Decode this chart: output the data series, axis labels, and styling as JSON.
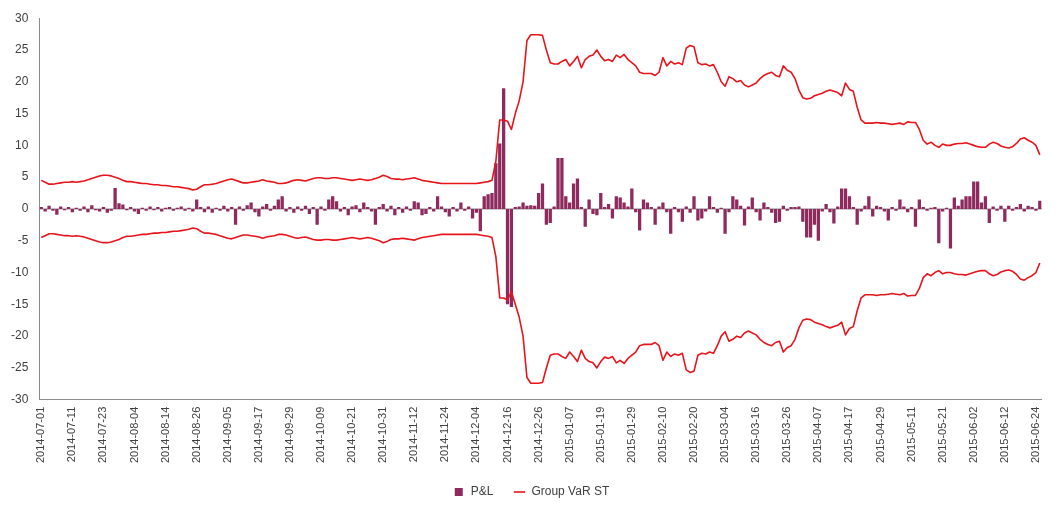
{
  "chart_data": {
    "type": "bar",
    "categories": [
      "2014-07-01",
      null,
      null,
      null,
      null,
      null,
      null,
      null,
      "2014-07-11",
      null,
      null,
      null,
      null,
      null,
      null,
      null,
      "2014-07-23",
      null,
      null,
      null,
      null,
      null,
      null,
      null,
      "2014-08-04",
      null,
      null,
      null,
      null,
      null,
      null,
      null,
      "2014-08-14",
      null,
      null,
      null,
      null,
      null,
      null,
      null,
      "2014-08-26",
      null,
      null,
      null,
      null,
      null,
      null,
      null,
      "2014-09-05",
      null,
      null,
      null,
      null,
      null,
      null,
      null,
      "2014-09-17",
      null,
      null,
      null,
      null,
      null,
      null,
      null,
      "2014-09-29",
      null,
      null,
      null,
      null,
      null,
      null,
      null,
      "2014-10-09",
      null,
      null,
      null,
      null,
      null,
      null,
      null,
      "2014-10-21",
      null,
      null,
      null,
      null,
      null,
      null,
      null,
      "2014-10-31",
      null,
      null,
      null,
      null,
      null,
      null,
      null,
      "2014-11-12",
      null,
      null,
      null,
      null,
      null,
      null,
      null,
      "2014-11-24",
      null,
      null,
      null,
      null,
      null,
      null,
      null,
      "2014-12-04",
      null,
      null,
      null,
      null,
      null,
      null,
      null,
      "2014-12-16",
      null,
      null,
      null,
      null,
      null,
      null,
      null,
      "2014-12-26",
      null,
      null,
      null,
      null,
      null,
      null,
      null,
      "2015-01-07",
      null,
      null,
      null,
      null,
      null,
      null,
      null,
      "2015-01-19",
      null,
      null,
      null,
      null,
      null,
      null,
      null,
      "2015-01-29",
      null,
      null,
      null,
      null,
      null,
      null,
      null,
      "2015-02-10",
      null,
      null,
      null,
      null,
      null,
      null,
      null,
      "2015-02-20",
      null,
      null,
      null,
      null,
      null,
      null,
      null,
      "2015-03-04",
      null,
      null,
      null,
      null,
      null,
      null,
      null,
      "2015-03-16",
      null,
      null,
      null,
      null,
      null,
      null,
      null,
      "2015-03-26",
      null,
      null,
      null,
      null,
      null,
      null,
      null,
      "2015-04-07",
      null,
      null,
      null,
      null,
      null,
      null,
      null,
      "2015-04-17",
      null,
      null,
      null,
      null,
      null,
      null,
      null,
      "2015-04-29",
      null,
      null,
      null,
      null,
      null,
      null,
      null,
      "2015-05-11",
      null,
      null,
      null,
      null,
      null,
      null,
      null,
      "2015-05-21",
      null,
      null,
      null,
      null,
      null,
      null,
      null,
      "2015-06-02",
      null,
      null,
      null,
      null,
      null,
      null,
      null,
      "2015-06-12",
      null,
      null,
      null,
      null,
      null,
      null,
      null,
      "2015-06-24",
      null
    ],
    "series": [
      {
        "name": "P&L",
        "color": "#8e2a5e",
        "values": [
          0.3,
          -0.4,
          0.5,
          -0.3,
          -0.9,
          0.4,
          -0.2,
          0.3,
          -0.5,
          0.2,
          -0.3,
          0.4,
          -0.5,
          0.6,
          -0.2,
          -0.4,
          0.3,
          -0.6,
          -0.3,
          3.3,
          0.9,
          0.7,
          -0.2,
          0.3,
          -0.4,
          -0.8,
          0.2,
          -0.3,
          0.4,
          -0.2,
          0.3,
          -0.4,
          0.2,
          0.3,
          -0.3,
          0.2,
          0.4,
          -0.3,
          0.2,
          -0.4,
          1.5,
          0.3,
          -0.5,
          0.4,
          -0.6,
          0.2,
          -0.3,
          0.5,
          -0.4,
          0.3,
          -2.5,
          0.4,
          -0.3,
          0.6,
          1.0,
          -0.5,
          -1.2,
          0.4,
          0.8,
          -0.3,
          0.5,
          1.5,
          2.0,
          -0.4,
          0.3,
          -0.6,
          0.4,
          -0.3,
          0.5,
          -0.8,
          0.3,
          -2.5,
          0.4,
          -0.3,
          1.5,
          2.0,
          1.2,
          -0.4,
          0.3,
          -1.0,
          0.4,
          0.6,
          -0.5,
          1.0,
          0.3,
          -0.4,
          -2.5,
          0.3,
          0.8,
          -0.4,
          0.5,
          -1.0,
          0.3,
          -0.6,
          0.4,
          -0.3,
          1.2,
          1.0,
          -1.0,
          -0.8,
          0.3,
          -0.4,
          2.0,
          0.4,
          -0.5,
          -1.2,
          0.3,
          -0.4,
          1.0,
          -0.3,
          0.4,
          -1.5,
          -0.6,
          -3.5,
          2.0,
          2.3,
          2.5,
          7.2,
          10.3,
          19,
          -15,
          -15.4,
          0.3,
          0.4,
          1.0,
          0.5,
          0.6,
          0.5,
          2.5,
          4.0,
          -2.5,
          -2.2,
          0.4,
          8.0,
          8.0,
          2.0,
          1.0,
          4.0,
          4.8,
          0.3,
          -2.8,
          1.5,
          -0.8,
          -1.0,
          2.5,
          0.3,
          0.8,
          -1.5,
          2.0,
          1.8,
          1.0,
          0.4,
          3.2,
          -0.5,
          -3.4,
          1.5,
          1.0,
          0.3,
          -2.5,
          0.4,
          1.0,
          -0.5,
          -3.9,
          0.3,
          -0.5,
          -2.0,
          0.4,
          -0.6,
          2.0,
          -1.8,
          -1.5,
          -0.4,
          2.0,
          0.3,
          -0.6,
          0.2,
          -3.9,
          -0.5,
          2.0,
          1.5,
          0.5,
          -2.6,
          0.4,
          1.8,
          -0.5,
          -1.8,
          1.0,
          0.3,
          -0.6,
          -2.2,
          -2.0,
          0.5,
          -0.3,
          0.3,
          0.3,
          0.4,
          -2.0,
          -4.5,
          -4.5,
          -2.5,
          -5.0,
          -0.4,
          0.8,
          -0.5,
          -2.3,
          0.4,
          3.2,
          3.2,
          2.0,
          0.3,
          -2.5,
          -0.4,
          0.5,
          2.0,
          -1.2,
          0.5,
          0.3,
          -0.4,
          -1.8,
          0.3,
          -0.3,
          1.5,
          0.4,
          -0.5,
          0.3,
          -2.8,
          1.5,
          0.3,
          -0.3,
          0.2,
          0.3,
          -5.4,
          -0.4,
          0.2,
          -6.2,
          1.8,
          0.5,
          1.5,
          2.0,
          2.0,
          4.3,
          4.3,
          1.0,
          2.0,
          -2.2,
          0.4,
          -0.3,
          0.5,
          -2.0,
          0.5,
          -0.3,
          0.3,
          0.8,
          -0.4,
          0.5,
          0.3,
          -0.3,
          1.3
        ]
      },
      {
        "name": "Group VaR ST",
        "type": "line",
        "color": "#e8141c",
        "values": [
          4.5,
          4.2,
          3.9,
          3.9,
          4.0,
          4.1,
          4.2,
          4.2,
          4.3,
          4.2,
          4.3,
          4.4,
          4.6,
          4.8,
          5.0,
          5.2,
          5.3,
          5.3,
          5.2,
          5.0,
          4.8,
          4.5,
          4.3,
          4.3,
          4.2,
          4.1,
          4.0,
          4.0,
          3.9,
          3.8,
          3.8,
          3.7,
          3.7,
          3.6,
          3.5,
          3.5,
          3.4,
          3.3,
          3.2,
          3.0,
          3.1,
          3.5,
          3.8,
          3.8,
          3.9,
          4.0,
          4.2,
          4.4,
          4.6,
          4.7,
          4.5,
          4.3,
          4.1,
          4.1,
          4.2,
          4.3,
          4.4,
          4.6,
          4.4,
          4.3,
          4.2,
          4.0,
          4.0,
          4.1,
          4.3,
          4.5,
          4.6,
          4.5,
          4.4,
          4.6,
          4.8,
          4.9,
          4.9,
          4.8,
          4.8,
          4.9,
          4.9,
          4.8,
          4.7,
          4.6,
          4.5,
          4.6,
          4.7,
          4.6,
          4.5,
          4.6,
          4.8,
          5.0,
          5.3,
          5.1,
          4.8,
          4.7,
          4.7,
          4.6,
          4.7,
          4.8,
          4.9,
          4.7,
          4.5,
          4.4,
          4.3,
          4.2,
          4.1,
          4.0,
          4.0,
          4.0,
          4.0,
          4.0,
          4.0,
          4.0,
          4.0,
          4.0,
          4.0,
          4.1,
          4.2,
          4.3,
          4.5,
          7.5,
          14,
          14,
          13.8,
          12.5,
          15,
          17,
          20,
          26.5,
          27.4,
          27.4,
          27.4,
          27.3,
          25,
          23,
          22.8,
          22.8,
          23.2,
          23.5,
          22.5,
          23.2,
          24,
          22.2,
          23.5,
          24,
          24.2,
          25,
          24,
          23.3,
          23.5,
          23.2,
          24.2,
          23.8,
          24.3,
          23.5,
          23,
          22.5,
          21.5,
          21.3,
          21.3,
          21.3,
          21,
          21.5,
          23.8,
          22.5,
          23.2,
          22.8,
          23,
          22.7,
          25.3,
          25.7,
          25.5,
          23,
          22.7,
          22.8,
          22.5,
          22.7,
          21.5,
          20,
          19.3,
          20.8,
          20.5,
          20,
          20.2,
          19.5,
          19.2,
          19.5,
          19.8,
          20.5,
          21,
          21.3,
          21.5,
          21,
          20.8,
          22.5,
          21.8,
          21.5,
          20.5,
          18.7,
          17.5,
          17.3,
          17.4,
          17.8,
          18,
          18.2,
          18.5,
          18.7,
          18.5,
          18.3,
          17.8,
          19.8,
          18.8,
          18.5,
          16,
          14,
          13.5,
          13.5,
          13.5,
          13.6,
          13.5,
          13.5,
          13.4,
          13.3,
          13.4,
          13.5,
          13.3,
          13.7,
          13.6,
          13.6,
          12.5,
          10.8,
          10.2,
          10.5,
          10,
          9.7,
          10.2,
          10,
          10,
          10.2,
          10.3,
          10.3,
          10.4,
          10.2,
          10,
          9.8,
          9.7,
          9.7,
          10.2,
          10.5,
          10.3,
          9.9,
          9.7,
          9.6,
          9.8,
          10.3,
          11,
          11.2,
          10.8,
          10.5,
          10,
          8.5
        ]
      },
      {
        "type": "line",
        "color": "#e8141c",
        "values": [
          -4.5,
          -4.2,
          -3.9,
          -3.9,
          -4.0,
          -4.1,
          -4.2,
          -4.2,
          -4.3,
          -4.2,
          -4.3,
          -4.4,
          -4.6,
          -4.8,
          -5.0,
          -5.2,
          -5.3,
          -5.3,
          -5.2,
          -5.0,
          -4.8,
          -4.5,
          -4.3,
          -4.3,
          -4.2,
          -4.1,
          -4.0,
          -4.0,
          -3.9,
          -3.8,
          -3.8,
          -3.7,
          -3.7,
          -3.6,
          -3.5,
          -3.5,
          -3.4,
          -3.3,
          -3.2,
          -3.0,
          -3.1,
          -3.5,
          -3.8,
          -3.8,
          -3.9,
          -4.0,
          -4.2,
          -4.4,
          -4.6,
          -4.7,
          -4.5,
          -4.3,
          -4.1,
          -4.1,
          -4.2,
          -4.3,
          -4.4,
          -4.6,
          -4.4,
          -4.3,
          -4.2,
          -4.0,
          -4.0,
          -4.1,
          -4.3,
          -4.5,
          -4.6,
          -4.5,
          -4.4,
          -4.6,
          -4.8,
          -4.9,
          -4.9,
          -4.8,
          -4.8,
          -4.9,
          -4.9,
          -4.8,
          -4.7,
          -4.6,
          -4.5,
          -4.6,
          -4.7,
          -4.6,
          -4.5,
          -4.6,
          -4.8,
          -5.0,
          -5.3,
          -5.1,
          -4.8,
          -4.7,
          -4.7,
          -4.6,
          -4.7,
          -4.8,
          -4.9,
          -4.7,
          -4.5,
          -4.4,
          -4.3,
          -4.2,
          -4.1,
          -4.0,
          -4.0,
          -4.0,
          -4.0,
          -4.0,
          -4.0,
          -4.0,
          -4.0,
          -4.0,
          -4.0,
          -4.1,
          -4.2,
          -4.3,
          -4.5,
          -7.5,
          -14,
          -14,
          -14.3,
          -13,
          -15,
          -17,
          -20,
          -26.5,
          -27.4,
          -27.4,
          -27.4,
          -27.3,
          -25,
          -23,
          -22.8,
          -22.8,
          -23.2,
          -23.5,
          -22.5,
          -23.2,
          -24,
          -22.2,
          -23.5,
          -24,
          -24.2,
          -25,
          -24,
          -23.3,
          -23.5,
          -23.2,
          -24.2,
          -23.8,
          -24.3,
          -23.5,
          -23,
          -22.5,
          -21.5,
          -21.3,
          -21.3,
          -21.3,
          -21,
          -21.5,
          -23.8,
          -22.5,
          -23.2,
          -22.8,
          -23,
          -22.7,
          -25.3,
          -25.7,
          -25.5,
          -23,
          -22.7,
          -22.8,
          -22.5,
          -22.7,
          -21.5,
          -20,
          -19.3,
          -20.8,
          -20.5,
          -20,
          -20.2,
          -19.5,
          -19.2,
          -19.5,
          -19.8,
          -20.5,
          -21,
          -21.3,
          -21.5,
          -21,
          -20.8,
          -22.5,
          -21.8,
          -21.5,
          -20.5,
          -18.7,
          -17.5,
          -17.3,
          -17.4,
          -17.8,
          -18,
          -18.2,
          -18.5,
          -18.7,
          -18.5,
          -18.3,
          -17.8,
          -19.8,
          -18.8,
          -18.5,
          -16,
          -14,
          -13.5,
          -13.5,
          -13.5,
          -13.6,
          -13.5,
          -13.5,
          -13.4,
          -13.3,
          -13.4,
          -13.5,
          -13.3,
          -13.7,
          -13.6,
          -13.6,
          -12.5,
          -10.8,
          -10.2,
          -10.5,
          -10,
          -9.7,
          -10.2,
          -10,
          -10,
          -10.2,
          -10.3,
          -10.3,
          -10.4,
          -10.2,
          -10,
          -9.8,
          -9.7,
          -9.7,
          -10.2,
          -10.5,
          -10.3,
          -9.9,
          -9.7,
          -9.6,
          -9.8,
          -10.3,
          -11,
          -11.2,
          -10.8,
          -10.5,
          -10,
          -8.5
        ]
      }
    ],
    "ylim": [
      -30,
      30
    ],
    "yticks": [
      -30,
      -25,
      -20,
      -15,
      -10,
      -5,
      0,
      5,
      10,
      15,
      20,
      25,
      30
    ],
    "ref_lines": [
      {
        "axis": "y",
        "value": 0,
        "color": "#8c8c8c"
      }
    ],
    "grid": false,
    "legend": "bottom",
    "marker": "none",
    "line_style": "solid"
  }
}
